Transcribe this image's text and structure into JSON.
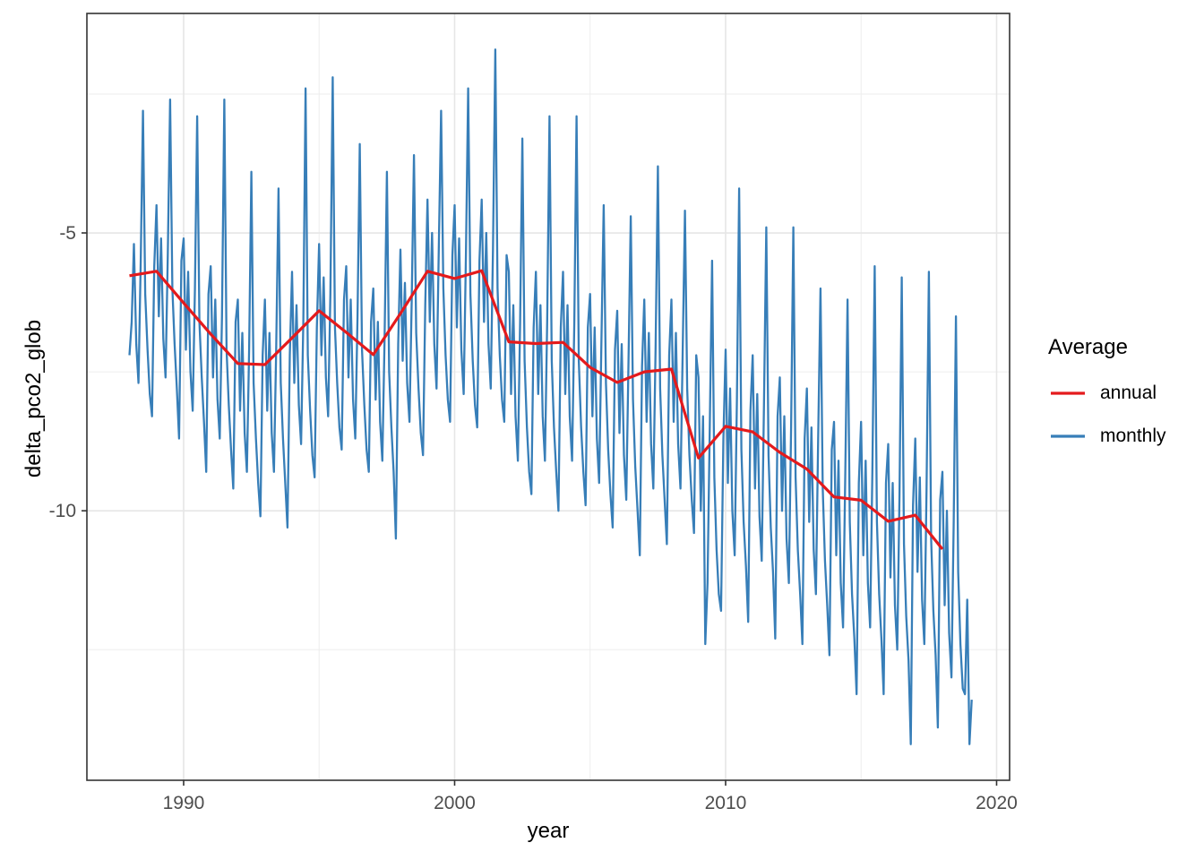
{
  "figure": {
    "background": "#ffffff",
    "panel_border_color": "#333333",
    "grid_major_color": "#e6e6e6",
    "grid_minor_color": "#ededed",
    "tick_color": "#333333",
    "tick_label_color": "#4d4d4d"
  },
  "axes": {
    "x_label": "year",
    "y_label": "delta_pco2_glob"
  },
  "legend": {
    "title": "Average",
    "items": [
      {
        "label": "annual",
        "color": "#E41A1C"
      },
      {
        "label": "monthly",
        "color": "#377EB8"
      }
    ]
  },
  "chart_data": {
    "type": "line",
    "title": "",
    "xlabel": "year",
    "ylabel": "delta_pco2_glob",
    "xlim": [
      1986.43,
      2020.48
    ],
    "ylim": [
      -14.85,
      -1.05
    ],
    "grid": true,
    "legend_position": "right",
    "x_major_ticks": [
      1990,
      2000,
      2010,
      2020
    ],
    "x_tick_labels": [
      "1990",
      "2000",
      "2010",
      "2020"
    ],
    "x_minor_gridlines": [
      1995,
      2005,
      2015
    ],
    "y_major_ticks": [
      -5,
      -10
    ],
    "y_tick_labels": [
      "-5",
      "-10"
    ],
    "y_minor_gridlines": [
      -2.5,
      -7.5,
      -12.5
    ],
    "series": [
      {
        "name": "annual",
        "color": "#E41A1C",
        "stroke_width": 3.2,
        "x": [
          1988,
          1989,
          1990,
          1991,
          1992,
          1993,
          1994,
          1995,
          1996,
          1997,
          1998,
          1999,
          2000,
          2001,
          2002,
          2003,
          2004,
          2005,
          2006,
          2007,
          2008,
          2009,
          2010,
          2011,
          2012,
          2013,
          2014,
          2015,
          2016,
          2017,
          2018
        ],
        "values": [
          -5.77,
          -5.69,
          -6.26,
          -6.82,
          -7.35,
          -7.37,
          -6.89,
          -6.4,
          -6.79,
          -7.19,
          -6.45,
          -5.69,
          -5.82,
          -5.68,
          -6.96,
          -6.99,
          -6.97,
          -7.42,
          -7.69,
          -7.5,
          -7.45,
          -9.05,
          -8.48,
          -8.58,
          -8.95,
          -9.25,
          -9.75,
          -9.81,
          -10.19,
          -10.08,
          -10.69
        ]
      },
      {
        "name": "monthly",
        "color": "#377EB8",
        "stroke_width": 2.3,
        "x_start": 1988.0,
        "x_step": 0.083333,
        "values": [
          -7.2,
          -6.6,
          -5.2,
          -7.0,
          -7.7,
          -5.5,
          -2.8,
          -6.1,
          -7.1,
          -7.9,
          -8.3,
          -5.6,
          -4.5,
          -6.5,
          -5.1,
          -6.9,
          -7.6,
          -5.4,
          -2.6,
          -6.0,
          -7.0,
          -7.8,
          -8.7,
          -5.5,
          -5.1,
          -7.1,
          -5.7,
          -7.5,
          -8.2,
          -6.0,
          -2.9,
          -6.6,
          -7.6,
          -8.4,
          -9.3,
          -6.1,
          -5.6,
          -7.6,
          -6.2,
          -8.0,
          -8.7,
          -6.5,
          -2.6,
          -7.1,
          -8.1,
          -8.9,
          -9.6,
          -6.6,
          -6.2,
          -8.2,
          -6.8,
          -8.6,
          -9.3,
          -7.1,
          -3.9,
          -7.7,
          -8.7,
          -9.5,
          -10.1,
          -7.2,
          -6.2,
          -8.2,
          -6.8,
          -8.6,
          -9.3,
          -7.1,
          -4.2,
          -7.7,
          -8.7,
          -9.5,
          -10.3,
          -7.2,
          -5.7,
          -7.7,
          -6.3,
          -8.1,
          -8.8,
          -6.6,
          -2.4,
          -7.2,
          -8.2,
          -9.0,
          -9.4,
          -6.7,
          -5.2,
          -7.2,
          -5.8,
          -7.6,
          -8.3,
          -6.1,
          -2.2,
          -6.7,
          -7.7,
          -8.5,
          -8.9,
          -6.2,
          -5.6,
          -7.6,
          -6.2,
          -8.0,
          -8.7,
          -6.5,
          -3.4,
          -7.1,
          -8.1,
          -8.9,
          -9.3,
          -6.6,
          -6.0,
          -8.0,
          -6.6,
          -8.4,
          -9.1,
          -6.9,
          -3.9,
          -7.5,
          -8.5,
          -9.3,
          -10.5,
          -7.0,
          -5.3,
          -7.3,
          -5.9,
          -7.7,
          -8.4,
          -6.2,
          -3.6,
          -6.8,
          -7.8,
          -8.6,
          -9.0,
          -6.3,
          -4.4,
          -6.6,
          -5.0,
          -7.0,
          -7.8,
          -5.3,
          -2.8,
          -6.0,
          -7.2,
          -8.0,
          -8.4,
          -5.4,
          -4.5,
          -6.7,
          -5.1,
          -7.1,
          -7.9,
          -5.4,
          -2.4,
          -6.1,
          -7.3,
          -8.1,
          -8.5,
          -5.5,
          -4.4,
          -6.6,
          -5.0,
          -7.0,
          -7.8,
          -5.3,
          -1.7,
          -6.0,
          -7.2,
          -8.0,
          -8.4,
          -5.4,
          -5.7,
          -7.9,
          -6.3,
          -8.3,
          -9.1,
          -6.6,
          -3.3,
          -7.3,
          -8.5,
          -9.3,
          -9.7,
          -6.7,
          -5.7,
          -7.9,
          -6.3,
          -8.3,
          -9.1,
          -6.6,
          -2.9,
          -7.3,
          -8.5,
          -9.3,
          -10.0,
          -6.7,
          -5.7,
          -7.9,
          -6.3,
          -8.3,
          -9.1,
          -6.6,
          -2.9,
          -7.3,
          -8.5,
          -9.3,
          -9.9,
          -6.7,
          -6.1,
          -8.3,
          -6.7,
          -8.7,
          -9.5,
          -7.0,
          -4.5,
          -7.7,
          -8.9,
          -9.7,
          -10.3,
          -7.1,
          -6.4,
          -8.6,
          -7.0,
          -9.0,
          -9.8,
          -7.3,
          -4.7,
          -8.0,
          -9.2,
          -10.0,
          -10.8,
          -7.4,
          -6.2,
          -8.4,
          -6.8,
          -8.8,
          -9.6,
          -7.1,
          -3.8,
          -7.8,
          -9.0,
          -9.8,
          -10.6,
          -7.2,
          -6.2,
          -8.4,
          -6.8,
          -8.8,
          -9.6,
          -7.1,
          -4.6,
          -7.8,
          -9.0,
          -9.8,
          -10.4,
          -7.2,
          -7.6,
          -10.0,
          -8.3,
          -12.4,
          -11.3,
          -8.5,
          -5.5,
          -9.4,
          -10.7,
          -11.5,
          -11.8,
          -8.7,
          -7.1,
          -9.5,
          -7.8,
          -10.0,
          -10.8,
          -8.0,
          -4.2,
          -8.9,
          -10.2,
          -11.0,
          -12.0,
          -8.2,
          -7.2,
          -9.6,
          -7.9,
          -10.1,
          -10.9,
          -8.1,
          -4.9,
          -9.0,
          -10.3,
          -11.1,
          -12.3,
          -8.3,
          -7.6,
          -10.0,
          -8.3,
          -10.5,
          -11.3,
          -8.5,
          -4.9,
          -9.4,
          -10.7,
          -11.5,
          -12.4,
          -8.7,
          -7.8,
          -10.2,
          -8.5,
          -10.7,
          -11.5,
          -8.7,
          -6.0,
          -9.6,
          -10.9,
          -11.7,
          -12.6,
          -8.9,
          -8.4,
          -10.8,
          -9.1,
          -11.3,
          -12.1,
          -9.3,
          -6.2,
          -10.2,
          -11.5,
          -12.3,
          -13.3,
          -9.5,
          -8.4,
          -10.8,
          -9.1,
          -11.3,
          -12.1,
          -9.3,
          -5.6,
          -10.2,
          -11.5,
          -12.3,
          -13.3,
          -9.5,
          -8.8,
          -11.2,
          -9.5,
          -11.7,
          -12.5,
          -9.7,
          -5.8,
          -10.6,
          -11.9,
          -12.7,
          -14.2,
          -9.9,
          -8.7,
          -11.1,
          -9.4,
          -11.6,
          -12.4,
          -9.6,
          -5.7,
          -10.5,
          -11.8,
          -12.6,
          -13.9,
          -9.8,
          -9.3,
          -11.7,
          -10.0,
          -12.2,
          -13.0,
          -10.2,
          -6.5,
          -11.1,
          -12.4,
          -13.2,
          -13.3,
          -11.6,
          -14.2,
          -13.4
        ]
      }
    ]
  }
}
